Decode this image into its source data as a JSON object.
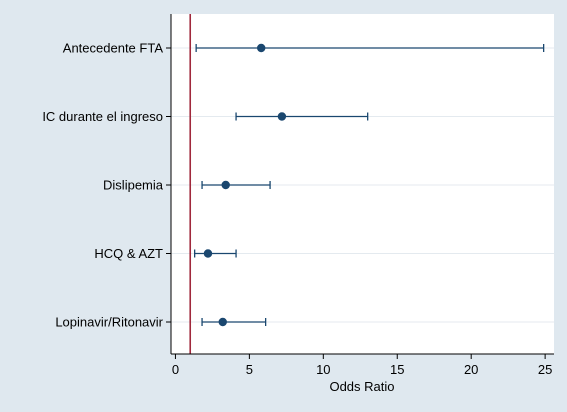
{
  "chart_data": {
    "type": "forest",
    "xlabel": "Odds Ratio",
    "xlim": [
      -0.3,
      25.6
    ],
    "xticks": [
      0,
      5,
      10,
      15,
      20,
      25
    ],
    "reference_line": 1,
    "grid": "horizontal",
    "categories": [
      "Antecedente FTA",
      "IC durante el ingreso",
      "Dislipemia",
      "HCQ & AZT",
      "Lopinavir/Ritonavir"
    ],
    "estimates": [
      5.8,
      7.2,
      3.4,
      2.2,
      3.2
    ],
    "ci_lower": [
      1.4,
      4.1,
      1.8,
      1.3,
      1.8
    ],
    "ci_upper": [
      24.9,
      13.0,
      6.4,
      4.1,
      6.1
    ],
    "colors": {
      "marker": "#1a476f",
      "reference_line": "#a0283c",
      "grid": "#e4eaef",
      "plot_bg": "#ffffff",
      "page_bg": "#dfe8ef"
    }
  }
}
